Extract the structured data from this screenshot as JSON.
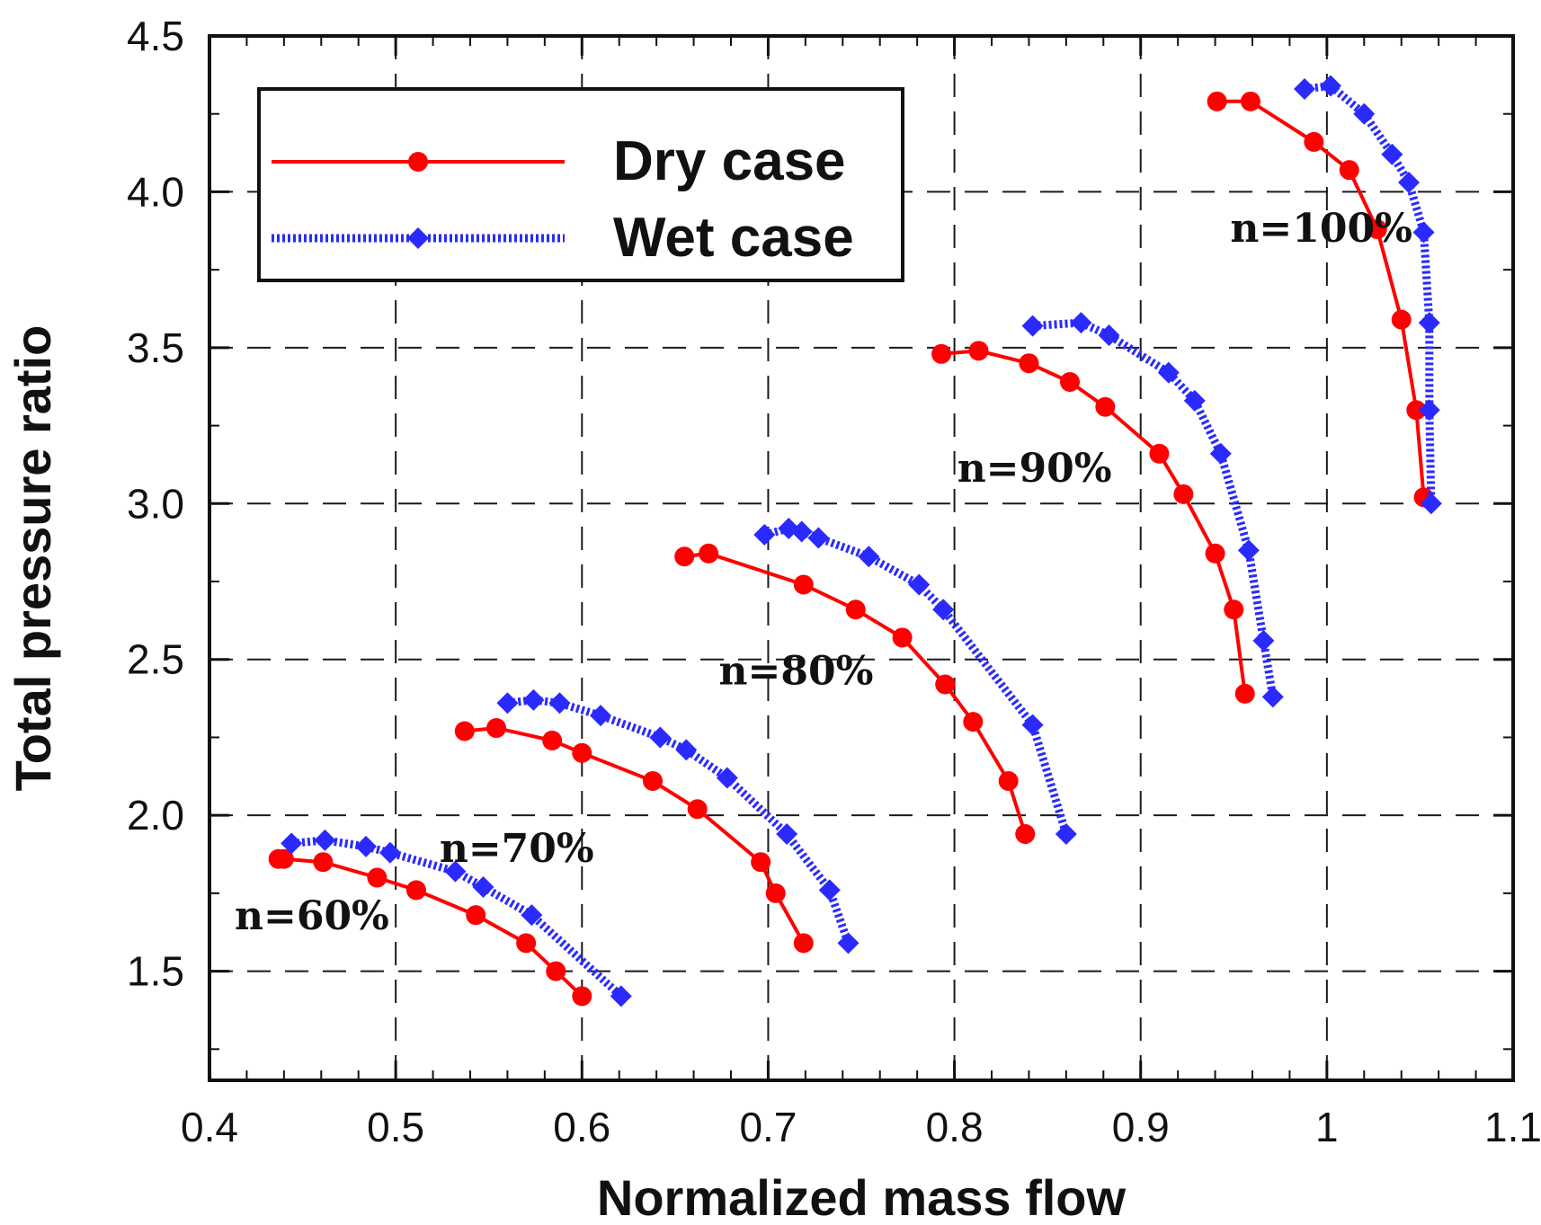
{
  "chart_data": {
    "type": "line",
    "title": "",
    "xlabel": "Normalized mass flow",
    "ylabel": "Total pressure ratio",
    "xlim": [
      0.4,
      1.1
    ],
    "ylim": [
      1.15,
      4.5
    ],
    "grid": true,
    "legend_position": "top-left",
    "x_ticks": [
      0.4,
      0.5,
      0.6,
      0.7,
      0.8,
      0.9,
      1.0,
      1.1
    ],
    "x_tick_labels": [
      "0.4",
      "0.5",
      "0.6",
      "0.7",
      "0.8",
      "0.9",
      "1",
      "1.1"
    ],
    "y_ticks": [
      1.5,
      2.0,
      2.5,
      3.0,
      3.5,
      4.0,
      4.5
    ],
    "y_tick_labels": [
      "1.5",
      "2.0",
      "2.5",
      "3.0",
      "3.5",
      "4.0",
      "4.5"
    ],
    "series": [
      {
        "name": "Dry case",
        "color": "#ff0000",
        "line_style": "solid",
        "marker": "circle",
        "curves": [
          {
            "speed": "n=60%",
            "x": [
              0.437,
              0.44,
              0.461,
              0.49,
              0.511,
              0.543,
              0.57,
              0.586,
              0.6
            ],
            "y": [
              1.86,
              1.86,
              1.85,
              1.8,
              1.76,
              1.68,
              1.59,
              1.5,
              1.42
            ]
          },
          {
            "speed": "n=70%",
            "x": [
              0.537,
              0.554,
              0.584,
              0.6,
              0.638,
              0.662,
              0.696,
              0.704,
              0.719
            ],
            "y": [
              2.27,
              2.28,
              2.24,
              2.2,
              2.11,
              2.02,
              1.85,
              1.75,
              1.59
            ]
          },
          {
            "speed": "n=80%",
            "x": [
              0.655,
              0.668,
              0.719,
              0.747,
              0.772,
              0.795,
              0.81,
              0.829,
              0.838
            ],
            "y": [
              2.83,
              2.84,
              2.74,
              2.66,
              2.57,
              2.42,
              2.3,
              2.11,
              1.94
            ]
          },
          {
            "speed": "n=90%",
            "x": [
              0.793,
              0.813,
              0.84,
              0.862,
              0.881,
              0.91,
              0.923,
              0.94,
              0.95,
              0.956
            ],
            "y": [
              3.48,
              3.49,
              3.45,
              3.39,
              3.31,
              3.16,
              3.03,
              2.84,
              2.66,
              2.39
            ]
          },
          {
            "speed": "n=100%",
            "x": [
              0.941,
              0.959,
              0.993,
              1.012,
              1.027,
              1.04,
              1.048,
              1.052
            ],
            "y": [
              4.29,
              4.29,
              4.16,
              4.07,
              3.88,
              3.59,
              3.3,
              3.02
            ]
          }
        ]
      },
      {
        "name": "Wet case",
        "color": "#2a2aff",
        "line_style": "dotted",
        "marker": "diamond",
        "curves": [
          {
            "speed": "n=60%",
            "x": [
              0.444,
              0.462,
              0.484,
              0.497,
              0.532,
              0.547,
              0.573,
              0.621
            ],
            "y": [
              1.91,
              1.92,
              1.9,
              1.88,
              1.82,
              1.77,
              1.68,
              1.42
            ]
          },
          {
            "speed": "n=70%",
            "x": [
              0.56,
              0.574,
              0.588,
              0.61,
              0.642,
              0.656,
              0.678,
              0.71,
              0.733,
              0.743
            ],
            "y": [
              2.36,
              2.37,
              2.36,
              2.32,
              2.25,
              2.21,
              2.12,
              1.94,
              1.76,
              1.59
            ]
          },
          {
            "speed": "n=80%",
            "x": [
              0.698,
              0.711,
              0.718,
              0.727,
              0.754,
              0.781,
              0.794,
              0.842,
              0.86
            ],
            "y": [
              2.9,
              2.92,
              2.91,
              2.89,
              2.83,
              2.74,
              2.66,
              2.29,
              1.94
            ]
          },
          {
            "speed": "n=90%",
            "x": [
              0.842,
              0.868,
              0.883,
              0.915,
              0.929,
              0.943,
              0.958,
              0.966,
              0.971
            ],
            "y": [
              3.57,
              3.58,
              3.54,
              3.42,
              3.33,
              3.16,
              2.85,
              2.56,
              2.38
            ]
          },
          {
            "speed": "n=100%",
            "x": [
              0.988,
              1.002,
              1.02,
              1.035,
              1.044,
              1.052,
              1.055,
              1.055,
              1.056
            ],
            "y": [
              4.33,
              4.34,
              4.25,
              4.12,
              4.03,
              3.87,
              3.58,
              3.3,
              3.0
            ]
          }
        ]
      }
    ],
    "annotations": [
      {
        "text": "n=60%",
        "x": 0.455,
        "y": 1.635
      },
      {
        "text": "n=70%",
        "x": 0.565,
        "y": 1.85
      },
      {
        "text": "n=80%",
        "x": 0.715,
        "y": 2.42
      },
      {
        "text": "n=90%",
        "x": 0.843,
        "y": 3.07
      },
      {
        "text": "n=100%",
        "x": 0.997,
        "y": 3.84
      }
    ]
  }
}
